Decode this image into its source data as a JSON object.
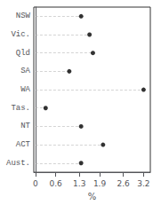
{
  "chart_data": {
    "type": "dot",
    "categories": [
      "NSW",
      "Vic.",
      "Qld",
      "SA",
      "WA",
      "Tas.",
      "NT",
      "ACT",
      "Aust."
    ],
    "values": [
      1.35,
      1.6,
      1.7,
      1.0,
      3.2,
      0.3,
      1.35,
      2.0,
      1.35
    ],
    "color": "#000000",
    "marker": "circle",
    "line_style": "dashed",
    "xlabel": "%",
    "xlim": [
      -0.05,
      3.4
    ],
    "xticks": [
      0,
      0.6,
      1.3,
      1.9,
      2.6,
      3.2
    ],
    "grid": false
  }
}
